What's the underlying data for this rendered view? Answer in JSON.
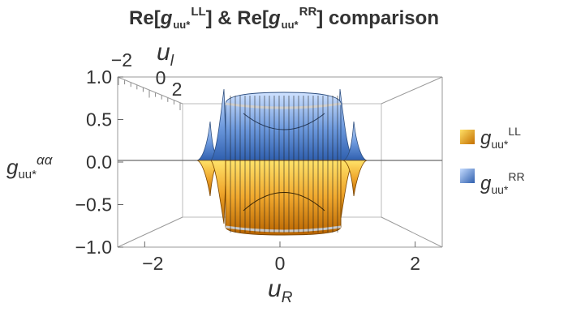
{
  "chart_data": {
    "type": "surface3d",
    "title": {
      "part1": "Re[",
      "g": "g",
      "sub": "uu*",
      "sup1": "LL",
      "part2": "] & Re[",
      "sup2": "RR",
      "part3": "] comparison"
    },
    "x_axis": {
      "label": "u",
      "label_sub": "R",
      "ticks": [
        "−2",
        "0",
        "2"
      ],
      "range": [
        -2.4,
        2.4
      ]
    },
    "depth_axis": {
      "label": "u",
      "label_sub": "l",
      "ticks": [
        "−2",
        "0",
        "2"
      ]
    },
    "z_axis": {
      "label": "g",
      "label_sub": "uu*",
      "label_sup": "αα",
      "range": [
        -1.0,
        1.0
      ],
      "ticks": [
        "1.0",
        "0.5",
        "0.0",
        "−0.5",
        "−1.0"
      ],
      "tick_values": [
        1.0,
        0.5,
        0.0,
        -0.5,
        -1.0
      ]
    },
    "series": [
      {
        "name_g": "g",
        "name_sub": "uu*",
        "name_sup": "LL",
        "color_top": "#ffe066",
        "color_bottom": "#c46f00",
        "region": "lower half, values 0 to −1 across inner band"
      },
      {
        "name_g": "g",
        "name_sub": "uu*",
        "name_sup": "RR",
        "color_top": "#c6dcff",
        "color_bottom": "#2f5fae",
        "region": "upper half, values 0 to 1 across inner band"
      }
    ],
    "band_edges_uR": [
      -0.75,
      0.75
    ],
    "spike_positions_uR": [
      -1.0,
      -0.6,
      0.6,
      1.0
    ],
    "grid": false,
    "legend_position": "right"
  }
}
